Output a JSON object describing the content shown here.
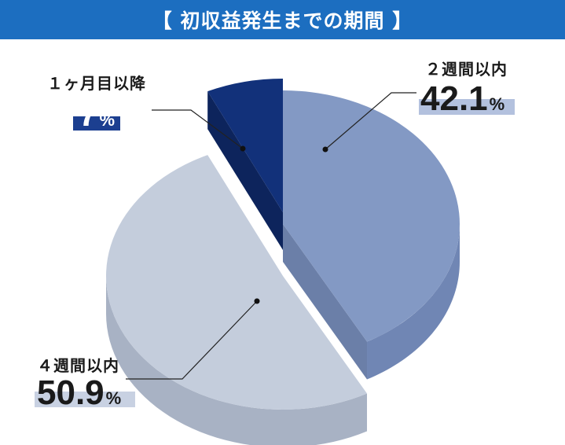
{
  "title": "【 初収益発生までの期間 】",
  "chart_data": {
    "type": "pie",
    "slices": [
      {
        "label": "２週間以内",
        "value": 42.1,
        "value_text": "42.1",
        "unit": "%",
        "color": "#8399c4",
        "side_color": "#7086b4",
        "highlight": "#b3c1de"
      },
      {
        "label": "４週間以内",
        "value": 50.9,
        "value_text": "50.9",
        "unit": "%",
        "color": "#c4cddc",
        "side_color": "#a8b2c4",
        "highlight": "#c8d1e2"
      },
      {
        "label": "１ヶ月目以降",
        "value": 7,
        "value_text": "7",
        "unit": "%",
        "color": "#12317a",
        "side_color": "#0d245c",
        "highlight": "#1c3f90"
      }
    ],
    "legend": "none",
    "style": "3d-exploded"
  }
}
